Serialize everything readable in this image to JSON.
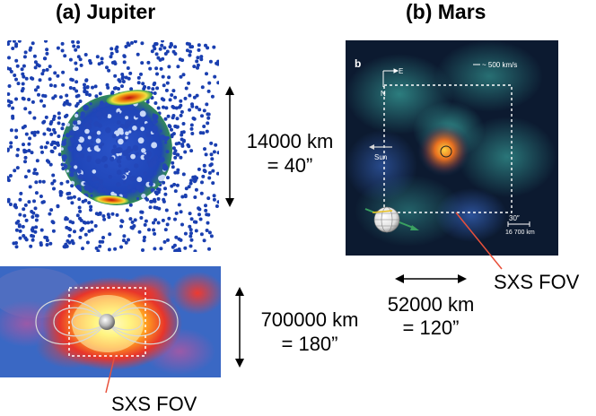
{
  "titles": {
    "jupiter": "(a) Jupiter",
    "mars": "(b) Mars"
  },
  "jupiter_top": {
    "scale_km": "14000 km",
    "scale_arcsec": "= 40”"
  },
  "jupiter_bottom": {
    "scale_km": "700000 km",
    "scale_arcsec": "= 180”",
    "fov_label": "SXS FOV"
  },
  "mars": {
    "panel_letter": "b",
    "compass_east": "E",
    "compass_north": "N",
    "velocity_legend": "~ 500 km/s",
    "sun_label": "Sun",
    "angle_scale": "30″",
    "distance_scale": "16 700 km",
    "fov_label": "SXS FOV",
    "scale_km": "52000 km",
    "scale_arcsec": "= 120”"
  },
  "colors": {
    "dots": "#1a3fb0",
    "arrow": "#000000",
    "fov_line": "#e8503a"
  }
}
